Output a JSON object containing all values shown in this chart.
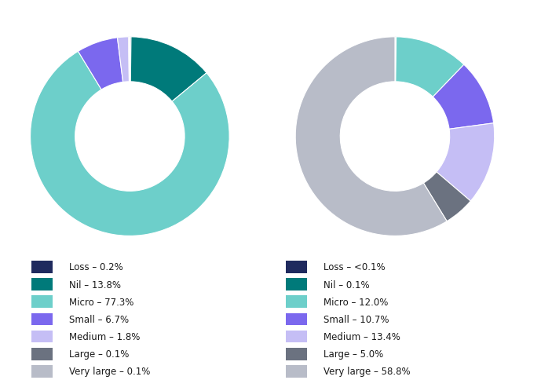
{
  "chart1": {
    "values": [
      0.2,
      13.8,
      77.3,
      6.7,
      1.8,
      0.1,
      0.1
    ],
    "labels": [
      "Loss – 0.2%",
      "Nil – 13.8%",
      "Micro – 77.3%",
      "Small – 6.7%",
      "Medium – 1.8%",
      "Large – 0.1%",
      "Very large – 0.1%"
    ],
    "colors": [
      "#1f2a5e",
      "#007a7a",
      "#6dcfca",
      "#7b68ee",
      "#c5bef5",
      "#6b7280",
      "#b8bcc8"
    ]
  },
  "chart2": {
    "values": [
      0.1,
      0.1,
      12.0,
      10.7,
      13.4,
      5.0,
      58.8
    ],
    "labels": [
      "Loss – <0.1%",
      "Nil – 0.1%",
      "Micro – 12.0%",
      "Small – 10.7%",
      "Medium – 13.4%",
      "Large – 5.0%",
      "Very large – 58.8%"
    ],
    "colors": [
      "#1f2a5e",
      "#007a7a",
      "#6dcfca",
      "#7b68ee",
      "#c5bef5",
      "#6b7280",
      "#b8bcc8"
    ]
  },
  "legend_fontsize": 8.5,
  "background_color": "#ffffff",
  "donut_width": 0.45,
  "text_color": "#1a1a1a"
}
